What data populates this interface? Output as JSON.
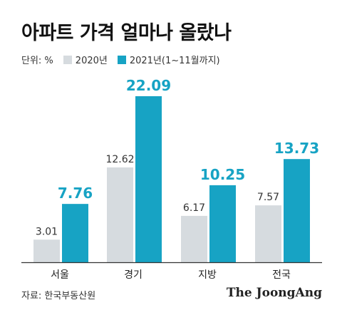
{
  "title": "아파트 가격 얼마나 올랐나",
  "legend": {
    "unit": "단위: %",
    "items": [
      {
        "label": "2020년",
        "color": "#d6dbdf"
      },
      {
        "label": "2021년(1~11월까지)",
        "color": "#17a3c4"
      }
    ]
  },
  "chart_data": {
    "type": "bar",
    "categories": [
      "서울",
      "경기",
      "지방",
      "전국"
    ],
    "series": [
      {
        "name": "2020년",
        "values": [
          3.01,
          12.62,
          6.17,
          7.57
        ],
        "color": "#d6dbdf",
        "label_color": "#333333"
      },
      {
        "name": "2021년(1~11월까지)",
        "values": [
          7.76,
          22.09,
          10.25,
          13.73
        ],
        "color": "#17a3c4",
        "label_color": "#17a3c4"
      }
    ],
    "ylim": [
      0,
      22.09
    ],
    "grid": false
  },
  "source": "자료: 한국부동산원",
  "brand": "The JoongAng"
}
